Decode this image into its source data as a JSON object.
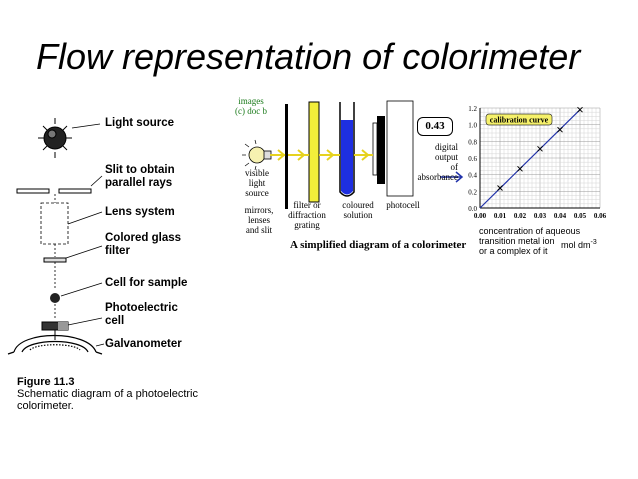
{
  "slide": {
    "title": "Flow representation of colorimeter"
  },
  "left_diagram": {
    "labels": {
      "light_source": "Light source",
      "slit": "Slit to obtain\nparallel rays",
      "lens": "Lens system",
      "filter": "Colored glass\nfilter",
      "cell": "Cell for sample",
      "photocell": "Photoelectric\ncell",
      "galvanometer": "Galvanometer"
    },
    "figure_number": "Figure 11.3",
    "caption": "Schematic diagram of a photoelectric\ncolorimeter."
  },
  "right_diagram": {
    "credit": "images\n(c) doc b",
    "readout": "0.43",
    "labels": {
      "visible_light": "visible\nlight\nsource",
      "mirrors": "mirrors,\nlenses\nand slit",
      "filter": "filter or\ndiffraction\ngrating",
      "solution": "coloured\nsolution",
      "photocell": "photocell",
      "digital_output": "digital\noutput\nof\nabsorbance"
    },
    "caption": "A simplified diagram of a colorimeter"
  },
  "chart_data": {
    "type": "line",
    "title": "calibration curve",
    "xlabel": "concentration of aqueous\ntransition metal ion\nor a complex of it",
    "xunit": "mol dm",
    "xunit_exp": "-3",
    "xlim": [
      0,
      0.06
    ],
    "ylim": [
      0,
      1.2
    ],
    "x_ticks": [
      "0.00",
      "0.01",
      "0.02",
      "0.03",
      "0.04",
      "0.05",
      "0.06"
    ],
    "y_ticks": [
      "0.0",
      "0.2",
      "0.4",
      "0.6",
      "0.8",
      "1.0",
      "1.2"
    ],
    "grid": true,
    "line_color": "#2233aa",
    "points": [
      {
        "x": 0.01,
        "y": 0.24
      },
      {
        "x": 0.02,
        "y": 0.47
      },
      {
        "x": 0.03,
        "y": 0.71
      },
      {
        "x": 0.04,
        "y": 0.94
      },
      {
        "x": 0.05,
        "y": 1.18
      }
    ],
    "line": [
      [
        0.0,
        0.0
      ],
      [
        0.05,
        1.18
      ]
    ]
  }
}
